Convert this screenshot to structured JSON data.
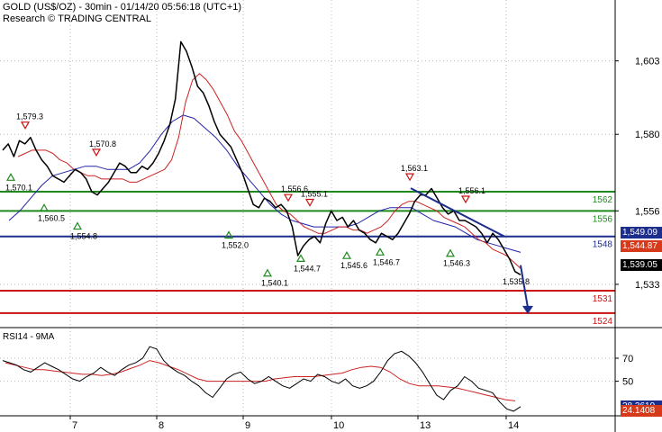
{
  "header": {
    "title": "GOLD (US$/OZ) - 30min - 01/14/20 05:56:18 (UTC+1)",
    "subtitle": "Research © TRADING CENTRAL"
  },
  "chart_data": [
    {
      "type": "line",
      "title": "GOLD (US$/OZ) - 30min - 01/14/20 05:56:18 (UTC+1)",
      "ylim": [
        1520,
        1617
      ],
      "y_ticks": [
        1533,
        1556,
        1580,
        1603
      ],
      "x_ticks": [
        "7",
        "8",
        "9",
        "10",
        "13",
        "14"
      ],
      "grid": true,
      "series": [
        {
          "role": "price",
          "color": "#000000",
          "values": [
            1575,
            1577,
            1573,
            1578,
            1577,
            1579,
            1575,
            1572,
            1570,
            1567,
            1566,
            1565,
            1567,
            1569,
            1568,
            1566,
            1562,
            1561,
            1563,
            1565,
            1568,
            1571,
            1570,
            1568,
            1568,
            1570,
            1569,
            1571,
            1574,
            1578,
            1583,
            1591,
            1609,
            1606,
            1601,
            1595,
            1593,
            1589,
            1584,
            1580,
            1578,
            1576,
            1572,
            1568,
            1563,
            1558,
            1557,
            1560,
            1559,
            1557,
            1558,
            1556,
            1551,
            1542,
            1545,
            1547,
            1548,
            1546,
            1552,
            1556,
            1553,
            1554,
            1551,
            1553,
            1550,
            1549,
            1547,
            1546,
            1549,
            1548,
            1547,
            1549,
            1552,
            1555,
            1559,
            1561,
            1561,
            1563,
            1560,
            1557,
            1555,
            1556,
            1553,
            1553,
            1552,
            1551,
            1549,
            1546,
            1549,
            1547,
            1544,
            1541,
            1537,
            1536
          ]
        },
        {
          "role": "moving-average-fast",
          "color": "#cc2222",
          "values": [
            1573,
            1574,
            1575,
            1575,
            1575,
            1574,
            1572,
            1571,
            1569,
            1568,
            1567,
            1567,
            1566,
            1566,
            1566,
            1566,
            1565,
            1565,
            1566,
            1567,
            1568,
            1569,
            1572,
            1579,
            1590,
            1597,
            1599,
            1597,
            1594,
            1590,
            1586,
            1581,
            1578,
            1574,
            1570,
            1566,
            1562,
            1558,
            1556,
            1555,
            1553,
            1551,
            1550,
            1549,
            1549,
            1550,
            1551,
            1551,
            1550,
            1550,
            1549,
            1550,
            1551,
            1553,
            1556,
            1558,
            1559,
            1559,
            1558,
            1557,
            1556,
            1554,
            1553,
            1552,
            1551,
            1549,
            1547,
            1546,
            1544,
            1543,
            1542,
            1540,
            1538
          ]
        },
        {
          "role": "moving-average-slow",
          "color": "#2222aa",
          "values": [
            1553,
            1556,
            1560,
            1564,
            1567,
            1568,
            1569,
            1570,
            1570,
            1569,
            1569,
            1569,
            1571,
            1575,
            1580,
            1584,
            1586,
            1585,
            1582,
            1579,
            1575,
            1570,
            1566,
            1562,
            1558,
            1555,
            1553,
            1552,
            1551,
            1551,
            1551,
            1551,
            1552,
            1554,
            1556,
            1557,
            1557,
            1557,
            1555,
            1553,
            1552,
            1551,
            1549,
            1547,
            1546,
            1545,
            1544,
            1543
          ]
        }
      ],
      "horizontal_levels": [
        {
          "value": 1562,
          "label": "1562",
          "color": "#1e8a1e"
        },
        {
          "value": 1556,
          "label": "1556",
          "color": "#1e8a1e"
        },
        {
          "value": 1548,
          "label": "1548",
          "color": "#1c2d8c"
        },
        {
          "value": 1531,
          "label": "1531",
          "color": "#cc1111"
        },
        {
          "value": 1524,
          "label": "1524",
          "color": "#cc1111"
        }
      ],
      "price_tags": [
        {
          "label": "1,549.09",
          "value": 1549.09,
          "color": "#1c2d8c"
        },
        {
          "label": "1,544.87",
          "value": 1544.87,
          "color": "#d63a1a"
        },
        {
          "label": "1,539.05",
          "value": 1539.05,
          "color": "#000000"
        }
      ],
      "annotations": [
        {
          "label": "1,579.3",
          "value": 1579.3,
          "marker": "down-triangle"
        },
        {
          "label": "1,570.1",
          "value": 1570.1,
          "marker": "up-triangle"
        },
        {
          "label": "1,560.5",
          "value": 1560.5,
          "marker": "up-triangle"
        },
        {
          "label": "1,570.8",
          "value": 1570.8,
          "marker": "down-triangle"
        },
        {
          "label": "1,554.8",
          "value": 1554.8,
          "marker": "up-triangle"
        },
        {
          "label": "1,552.0",
          "value": 1552.0,
          "marker": "up-triangle"
        },
        {
          "label": "1,540.1",
          "value": 1540.1,
          "marker": "up-triangle"
        },
        {
          "label": "1,556.6",
          "value": 1556.6,
          "marker": "down-triangle"
        },
        {
          "label": "1,555.1",
          "value": 1555.1,
          "marker": "down-triangle"
        },
        {
          "label": "1,544.7",
          "value": 1544.7,
          "marker": "up-triangle"
        },
        {
          "label": "1,545.6",
          "value": 1545.6,
          "marker": "up-triangle"
        },
        {
          "label": "1,546.7",
          "value": 1546.7,
          "marker": "up-triangle"
        },
        {
          "label": "1,563.1",
          "value": 1563.1,
          "marker": "down-triangle"
        },
        {
          "label": "1,556.1",
          "value": 1556.1,
          "marker": "down-triangle"
        },
        {
          "label": "1,546.3",
          "value": 1546.3,
          "marker": "up-triangle"
        },
        {
          "label": "1,535.8",
          "value": 1535.8,
          "marker": "none"
        }
      ],
      "target_arrow": {
        "from": 1539,
        "to": 1524,
        "color": "#1c2d8c"
      }
    },
    {
      "type": "line",
      "title": "RSI14 - 9MA",
      "ylim": [
        20,
        95
      ],
      "y_ticks": [
        50,
        70
      ],
      "series": [
        {
          "role": "rsi",
          "color": "#000000",
          "values": [
            68,
            66,
            64,
            60,
            58,
            62,
            66,
            63,
            60,
            56,
            52,
            50,
            54,
            57,
            62,
            58,
            55,
            60,
            64,
            66,
            70,
            80,
            78,
            68,
            62,
            58,
            55,
            50,
            46,
            40,
            36,
            44,
            52,
            56,
            58,
            52,
            48,
            50,
            54,
            50,
            46,
            44,
            48,
            52,
            50,
            56,
            54,
            50,
            48,
            52,
            46,
            44,
            46,
            50,
            58,
            68,
            74,
            76,
            72,
            66,
            58,
            48,
            38,
            34,
            42,
            46,
            54,
            50,
            44,
            42,
            40,
            32,
            26,
            24,
            28
          ]
        },
        {
          "role": "rsi-ma",
          "color": "#cc2222",
          "values": [
            66,
            64,
            62,
            60,
            60,
            59,
            58,
            57,
            56,
            56,
            55,
            56,
            58,
            61,
            64,
            68,
            66,
            63,
            60,
            56,
            52,
            50,
            50,
            50,
            50,
            50,
            50,
            50,
            52,
            53,
            54,
            54,
            54,
            55,
            56,
            57,
            60,
            62,
            63,
            62,
            58,
            52,
            48,
            46,
            46,
            46,
            45,
            44,
            42,
            40,
            38,
            36,
            34,
            33
          ]
        }
      ],
      "price_tags": [
        {
          "label": "28.3619",
          "value": 28.3619,
          "color": "#1c2d8c"
        },
        {
          "label": "24.1408",
          "value": 24.1408,
          "color": "#d63a1a"
        }
      ]
    }
  ]
}
